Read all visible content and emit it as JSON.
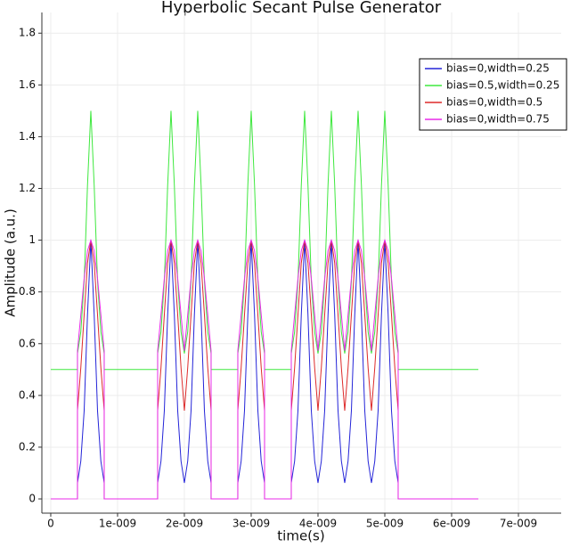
{
  "chart_data": {
    "type": "line",
    "title": "Hyperbolic Secant Pulse Generator",
    "x_label": "time(s)",
    "y_label": "Amplitude (a.u.)",
    "xlim": [
      -1.33e-10,
      7.64e-09
    ],
    "ylim": [
      -0.055,
      1.88
    ],
    "xticks": [
      0,
      {
        "value": 1e-09,
        "label": "1e-009"
      },
      {
        "value": 2e-09,
        "label": "2e-009"
      },
      {
        "value": 3e-09,
        "label": "3e-009"
      },
      {
        "value": 4e-09,
        "label": "4e-009"
      },
      {
        "value": 5e-09,
        "label": "5e-009"
      },
      {
        "value": 6e-09,
        "label": "6e-009"
      },
      {
        "value": 7e-09,
        "label": "7e-009"
      }
    ],
    "yticks": [
      0,
      0.2,
      0.4,
      0.6,
      0.8,
      1,
      1.2,
      1.4,
      1.6,
      1.8
    ],
    "grid": true,
    "legend": "upper right",
    "x": [
      0,
      4e-10,
      4e-10,
      4.5e-10,
      5e-10,
      5.5e-10,
      6e-10,
      6.5e-10,
      7e-10,
      7.5e-10,
      8e-10,
      8e-10,
      1.6e-09,
      1.6e-09,
      1.65e-09,
      1.7e-09,
      1.75e-09,
      1.8e-09,
      1.85e-09,
      1.9e-09,
      1.95e-09,
      2e-09,
      2.05e-09,
      2.1e-09,
      2.15e-09,
      2.2e-09,
      2.25e-09,
      2.3e-09,
      2.35e-09,
      2.4e-09,
      2.4e-09,
      2.8e-09,
      2.8e-09,
      2.85e-09,
      2.9e-09,
      2.95e-09,
      3e-09,
      3.05e-09,
      3.1e-09,
      3.15e-09,
      3.2e-09,
      3.2e-09,
      3.6e-09,
      3.6e-09,
      3.65e-09,
      3.7e-09,
      3.75e-09,
      3.8e-09,
      3.85e-09,
      3.9e-09,
      3.95e-09,
      4e-09,
      4.05e-09,
      4.1e-09,
      4.15e-09,
      4.2e-09,
      4.25e-09,
      4.3e-09,
      4.35e-09,
      4.4e-09,
      4.45e-09,
      4.5e-09,
      4.55e-09,
      4.6e-09,
      4.65e-09,
      4.7e-09,
      4.75e-09,
      4.8e-09,
      4.85e-09,
      4.9e-09,
      4.95e-09,
      5e-09,
      5.05e-09,
      5.1e-09,
      5.15e-09,
      5.2e-09,
      5.2e-09,
      6.4e-09
    ],
    "series": [
      {
        "name": "bias=0,width=0.25",
        "color": "#2424d8",
        "values": [
          0,
          0,
          0.062,
          0.146,
          0.341,
          0.712,
          1,
          0.712,
          0.341,
          0.146,
          0.062,
          0,
          0,
          0.062,
          0.146,
          0.341,
          0.712,
          1,
          0.712,
          0.341,
          0.146,
          0.062,
          0.146,
          0.341,
          0.712,
          1,
          0.712,
          0.341,
          0.146,
          0.062,
          0,
          0,
          0.062,
          0.146,
          0.341,
          0.712,
          1,
          0.712,
          0.341,
          0.146,
          0.062,
          0,
          0,
          0.062,
          0.146,
          0.341,
          0.712,
          1,
          0.712,
          0.341,
          0.146,
          0.062,
          0.146,
          0.341,
          0.712,
          1,
          0.712,
          0.341,
          0.146,
          0.062,
          0.146,
          0.341,
          0.712,
          1,
          0.712,
          0.341,
          0.146,
          0.062,
          0.146,
          0.341,
          0.712,
          1,
          0.712,
          0.341,
          0.146,
          0.062,
          0,
          0
        ]
      },
      {
        "name": "bias=0.5,width=0.25",
        "color": "#3ee83e",
        "values": [
          0.5,
          0.5,
          0.562,
          0.646,
          0.841,
          1.212,
          1.5,
          1.212,
          0.841,
          0.646,
          0.562,
          0.5,
          0.5,
          0.562,
          0.646,
          0.841,
          1.212,
          1.5,
          1.212,
          0.841,
          0.646,
          0.562,
          0.646,
          0.841,
          1.212,
          1.5,
          1.212,
          0.841,
          0.646,
          0.562,
          0.5,
          0.5,
          0.562,
          0.646,
          0.841,
          1.212,
          1.5,
          1.212,
          0.841,
          0.646,
          0.562,
          0.5,
          0.5,
          0.562,
          0.646,
          0.841,
          1.212,
          1.5,
          1.212,
          0.841,
          0.646,
          0.562,
          0.646,
          0.841,
          1.212,
          1.5,
          1.212,
          0.841,
          0.646,
          0.562,
          0.646,
          0.841,
          1.212,
          1.5,
          1.212,
          0.841,
          0.646,
          0.562,
          0.646,
          0.841,
          1.212,
          1.5,
          1.212,
          0.841,
          0.646,
          0.562,
          0.5,
          0.5
        ]
      },
      {
        "name": "bias=0,width=0.5",
        "color": "#dd2a2a",
        "values": [
          0,
          0,
          0.341,
          0.507,
          0.712,
          0.912,
          1,
          0.912,
          0.712,
          0.507,
          0.341,
          0,
          0,
          0.341,
          0.507,
          0.712,
          0.912,
          1,
          0.912,
          0.712,
          0.507,
          0.341,
          0.507,
          0.712,
          0.912,
          1,
          0.912,
          0.712,
          0.507,
          0.341,
          0,
          0,
          0.341,
          0.507,
          0.712,
          0.912,
          1,
          0.912,
          0.712,
          0.507,
          0.341,
          0,
          0,
          0.341,
          0.507,
          0.712,
          0.912,
          1,
          0.912,
          0.712,
          0.507,
          0.341,
          0.507,
          0.712,
          0.912,
          1,
          0.912,
          0.712,
          0.507,
          0.341,
          0.507,
          0.712,
          0.912,
          1,
          0.912,
          0.712,
          0.507,
          0.341,
          0.507,
          0.712,
          0.912,
          1,
          0.912,
          0.712,
          0.507,
          0.341,
          0,
          0
        ]
      },
      {
        "name": "bias=0,width=0.75",
        "color": "#e82ae8",
        "values": [
          0,
          0,
          0.572,
          0.712,
          0.852,
          0.959,
          1,
          0.959,
          0.852,
          0.712,
          0.572,
          0,
          0,
          0.572,
          0.712,
          0.852,
          0.959,
          1,
          0.959,
          0.852,
          0.712,
          0.572,
          0.712,
          0.852,
          0.959,
          1,
          0.959,
          0.852,
          0.712,
          0.572,
          0,
          0,
          0.572,
          0.712,
          0.852,
          0.959,
          1,
          0.959,
          0.852,
          0.712,
          0.572,
          0,
          0,
          0.572,
          0.712,
          0.852,
          0.959,
          1,
          0.959,
          0.852,
          0.712,
          0.572,
          0.712,
          0.852,
          0.959,
          1,
          0.959,
          0.852,
          0.712,
          0.572,
          0.712,
          0.852,
          0.959,
          1,
          0.959,
          0.852,
          0.712,
          0.572,
          0.712,
          0.852,
          0.959,
          1,
          0.959,
          0.852,
          0.712,
          0.572,
          0,
          0
        ]
      }
    ]
  }
}
